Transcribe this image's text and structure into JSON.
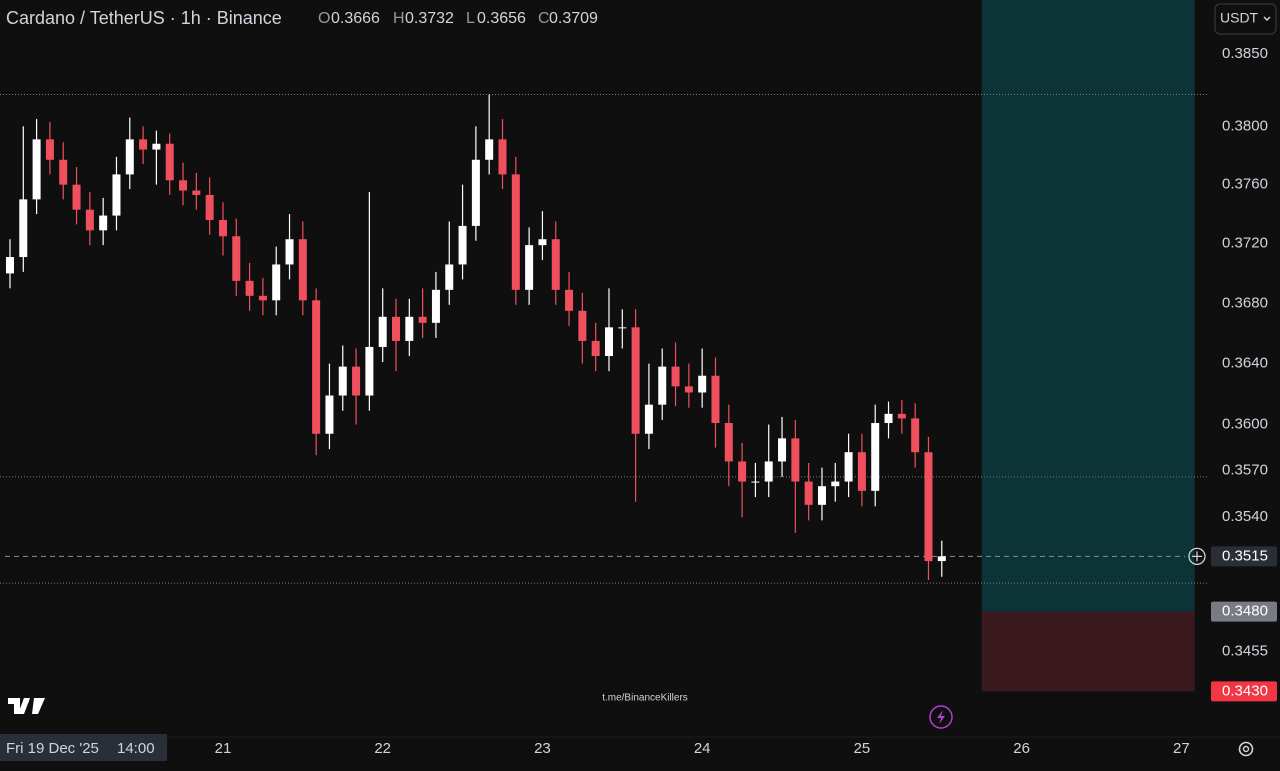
{
  "chart_data": {
    "type": "candlestick",
    "title": "Cardano / TetherUS · 1h · Binance",
    "ohlc_header": {
      "o_label": "O",
      "o": 0.3666,
      "h_label": "H",
      "h": 0.3732,
      "l_label": "L",
      "l": 0.3656,
      "c_label": "C",
      "c": 0.3709
    },
    "currency_button": "USDT",
    "watermark": "t.me/BinanceKillers",
    "crosshair": {
      "date": "Fri 19 Dec '25",
      "time": "14:00"
    },
    "log": true,
    "grid": false,
    "up_color": "#ffffff",
    "down_color": "#f0505e",
    "xlim": [
      "2025-12-19T14:30",
      "2025-12-27T04:00"
    ],
    "xticks": [
      {
        "value": "2025-12-21T00:00",
        "label": "21"
      },
      {
        "value": "2025-12-22T00:00",
        "label": "22"
      },
      {
        "value": "2025-12-23T00:00",
        "label": "23"
      },
      {
        "value": "2025-12-24T00:00",
        "label": "24"
      },
      {
        "value": "2025-12-25T00:00",
        "label": "25"
      },
      {
        "value": "2025-12-26T00:00",
        "label": "26"
      },
      {
        "value": "2025-12-27T00:00",
        "label": "27"
      }
    ],
    "ylim": [
      0.3403,
      0.3888
    ],
    "yticks": [
      {
        "value": 0.385,
        "label": "0.3850"
      },
      {
        "value": 0.38,
        "label": "0.3800"
      },
      {
        "value": 0.376,
        "label": "0.3760"
      },
      {
        "value": 0.372,
        "label": "0.3720"
      },
      {
        "value": 0.368,
        "label": "0.3680"
      },
      {
        "value": 0.364,
        "label": "0.3640"
      },
      {
        "value": 0.36,
        "label": "0.3600"
      },
      {
        "value": 0.357,
        "label": "0.3570"
      },
      {
        "value": 0.354,
        "label": "0.3540"
      },
      {
        "value": 0.3455,
        "label": "0.3455"
      }
    ],
    "levels": [
      0.3822,
      0.3566,
      0.3498
    ],
    "price_line": {
      "value": 0.3515,
      "label": "0.3515"
    },
    "position": {
      "start": "2025-12-25T18:00",
      "end": "2025-12-27T02:00",
      "entry": 0.348,
      "entry_label": "0.3480",
      "stop": 0.343,
      "stop_label": "0.3430"
    },
    "x": [
      "2025-12-19T16:00",
      "2025-12-19T18:00",
      "2025-12-19T20:00",
      "2025-12-19T22:00",
      "2025-12-20T00:00",
      "2025-12-20T02:00",
      "2025-12-20T04:00",
      "2025-12-20T06:00",
      "2025-12-20T08:00",
      "2025-12-20T10:00",
      "2025-12-20T12:00",
      "2025-12-20T14:00",
      "2025-12-20T16:00",
      "2025-12-20T18:00",
      "2025-12-20T20:00",
      "2025-12-20T22:00",
      "2025-12-21T00:00",
      "2025-12-21T02:00",
      "2025-12-21T04:00",
      "2025-12-21T06:00",
      "2025-12-21T08:00",
      "2025-12-21T10:00",
      "2025-12-21T12:00",
      "2025-12-21T14:00",
      "2025-12-21T16:00",
      "2025-12-21T18:00",
      "2025-12-21T20:00",
      "2025-12-21T22:00",
      "2025-12-22T00:00",
      "2025-12-22T02:00",
      "2025-12-22T04:00",
      "2025-12-22T06:00",
      "2025-12-22T08:00",
      "2025-12-22T10:00",
      "2025-12-22T12:00",
      "2025-12-22T14:00",
      "2025-12-22T16:00",
      "2025-12-22T18:00",
      "2025-12-22T20:00",
      "2025-12-22T22:00",
      "2025-12-23T00:00",
      "2025-12-23T02:00",
      "2025-12-23T04:00",
      "2025-12-23T06:00",
      "2025-12-23T08:00",
      "2025-12-23T10:00",
      "2025-12-23T12:00",
      "2025-12-23T14:00",
      "2025-12-23T16:00",
      "2025-12-23T18:00",
      "2025-12-23T20:00",
      "2025-12-23T22:00",
      "2025-12-24T00:00",
      "2025-12-24T02:00",
      "2025-12-24T04:00",
      "2025-12-24T06:00",
      "2025-12-24T08:00",
      "2025-12-24T10:00",
      "2025-12-24T12:00",
      "2025-12-24T14:00",
      "2025-12-24T16:00",
      "2025-12-24T18:00",
      "2025-12-24T20:00",
      "2025-12-24T22:00",
      "2025-12-25T00:00",
      "2025-12-25T02:00",
      "2025-12-25T04:00",
      "2025-12-25T06:00",
      "2025-12-25T08:00",
      "2025-12-25T10:00",
      "2025-12-25T12:00"
    ],
    "open": [
      0.37,
      0.3711,
      0.375,
      0.3791,
      0.3777,
      0.376,
      0.3743,
      0.3729,
      0.3739,
      0.3767,
      0.3791,
      0.3784,
      0.3788,
      0.3763,
      0.3756,
      0.3753,
      0.3736,
      0.3725,
      0.3695,
      0.3685,
      0.3682,
      0.3706,
      0.3723,
      0.3682,
      0.3594,
      0.3619,
      0.3638,
      0.3619,
      0.3651,
      0.3671,
      0.3655,
      0.3671,
      0.3667,
      0.3689,
      0.3706,
      0.3732,
      0.3777,
      0.3791,
      0.3767,
      0.3689,
      0.3719,
      0.3723,
      0.3689,
      0.3675,
      0.3655,
      0.3645,
      0.3664,
      0.3664,
      0.3594,
      0.3613,
      0.3638,
      0.3625,
      0.3621,
      0.3632,
      0.3601,
      0.3576,
      0.3563,
      0.3563,
      0.3576,
      0.3591,
      0.3563,
      0.3548,
      0.356,
      0.3563,
      0.3582,
      0.3557,
      0.3601,
      0.3607,
      0.3604,
      0.3582,
      0.3512
    ],
    "high": [
      0.3723,
      0.38,
      0.3805,
      0.3803,
      0.3789,
      0.3772,
      0.3755,
      0.3751,
      0.3779,
      0.3806,
      0.38,
      0.3797,
      0.3795,
      0.3775,
      0.3768,
      0.3765,
      0.3748,
      0.3737,
      0.3707,
      0.3697,
      0.3718,
      0.374,
      0.3735,
      0.369,
      0.364,
      0.3652,
      0.365,
      0.3755,
      0.369,
      0.3683,
      0.3683,
      0.369,
      0.3701,
      0.3735,
      0.376,
      0.38,
      0.3822,
      0.3805,
      0.3779,
      0.3731,
      0.3742,
      0.3735,
      0.3701,
      0.3687,
      0.3667,
      0.369,
      0.3676,
      0.3676,
      0.364,
      0.365,
      0.3654,
      0.364,
      0.365,
      0.3644,
      0.3613,
      0.3588,
      0.3575,
      0.36,
      0.3605,
      0.3603,
      0.3575,
      0.3572,
      0.3575,
      0.3594,
      0.3594,
      0.3613,
      0.3615,
      0.3616,
      0.3614,
      0.3592,
      0.3525
    ],
    "low": [
      0.369,
      0.3701,
      0.374,
      0.3767,
      0.375,
      0.3733,
      0.3719,
      0.3719,
      0.3729,
      0.3757,
      0.3774,
      0.376,
      0.3753,
      0.3746,
      0.3743,
      0.3726,
      0.3712,
      0.3685,
      0.3675,
      0.3672,
      0.3672,
      0.3696,
      0.3672,
      0.358,
      0.3584,
      0.3609,
      0.36,
      0.3609,
      0.3641,
      0.3635,
      0.3645,
      0.3657,
      0.3657,
      0.3679,
      0.3696,
      0.3722,
      0.3767,
      0.3757,
      0.3679,
      0.3679,
      0.3709,
      0.3679,
      0.3665,
      0.364,
      0.3635,
      0.3635,
      0.365,
      0.355,
      0.3584,
      0.3603,
      0.3612,
      0.3611,
      0.3611,
      0.3585,
      0.356,
      0.354,
      0.3553,
      0.3553,
      0.3566,
      0.353,
      0.3538,
      0.3538,
      0.355,
      0.3553,
      0.3547,
      0.3547,
      0.3591,
      0.3594,
      0.3572,
      0.35,
      0.3502
    ],
    "close": [
      0.3711,
      0.375,
      0.3791,
      0.3777,
      0.376,
      0.3743,
      0.3729,
      0.3739,
      0.3767,
      0.3791,
      0.3784,
      0.3788,
      0.3763,
      0.3756,
      0.3753,
      0.3736,
      0.3725,
      0.3695,
      0.3685,
      0.3682,
      0.3706,
      0.3723,
      0.3682,
      0.3594,
      0.3619,
      0.3638,
      0.3619,
      0.3651,
      0.3671,
      0.3655,
      0.3671,
      0.3667,
      0.3689,
      0.3706,
      0.3732,
      0.3777,
      0.3791,
      0.3767,
      0.3689,
      0.3719,
      0.3723,
      0.3689,
      0.3675,
      0.3655,
      0.3645,
      0.3664,
      0.3664,
      0.3594,
      0.3613,
      0.3638,
      0.3625,
      0.3621,
      0.3632,
      0.3601,
      0.3576,
      0.3563,
      0.3563,
      0.3576,
      0.3591,
      0.3563,
      0.3548,
      0.356,
      0.3563,
      0.3582,
      0.3557,
      0.3601,
      0.3607,
      0.3604,
      0.3582,
      0.3512,
      0.3515
    ]
  }
}
